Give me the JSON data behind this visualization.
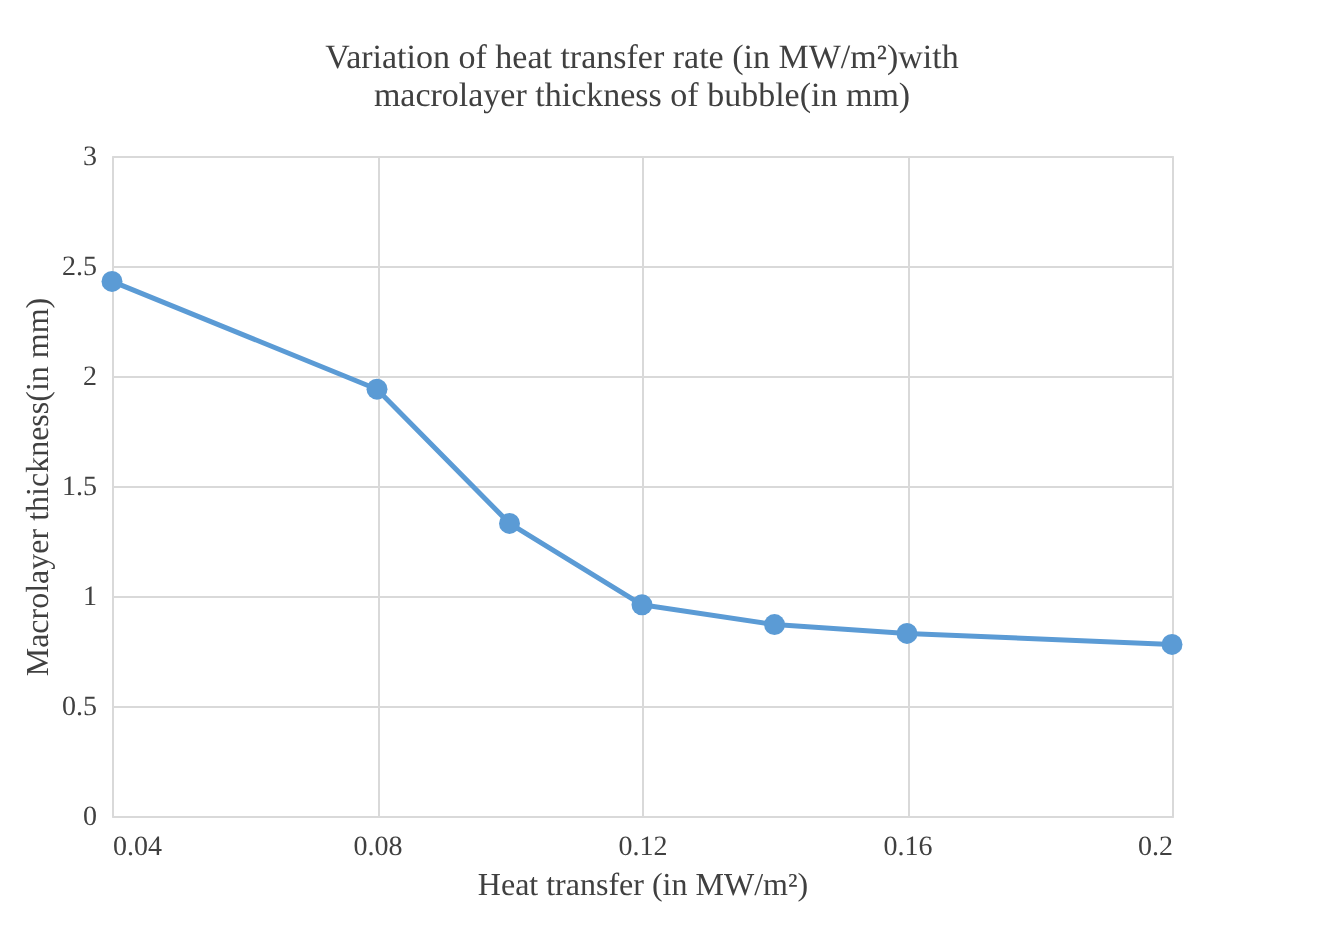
{
  "chart_data": {
    "type": "line",
    "title": "Variation of heat transfer rate (in MW/m²)with\nmacrolayer thickness of bubble(in mm)",
    "xlabel": "Heat transfer (in MW/m²)",
    "ylabel": "Macrolayer thickness(in mm)",
    "x": [
      0.04,
      0.08,
      0.1,
      0.12,
      0.14,
      0.16,
      0.2
    ],
    "series": [
      {
        "color": "#5b9bd5",
        "values": [
          2.43,
          1.94,
          1.33,
          0.96,
          0.87,
          0.83,
          0.78
        ]
      }
    ],
    "xlim": [
      0.04,
      0.2
    ],
    "xticks": [
      0.04,
      0.08,
      0.12,
      0.16,
      0.2
    ],
    "ylim": [
      0,
      3
    ],
    "yticks": [
      0,
      0.5,
      1,
      1.5,
      2,
      2.5,
      3
    ],
    "grid": true,
    "marker": "circle",
    "line_style": "solid"
  }
}
